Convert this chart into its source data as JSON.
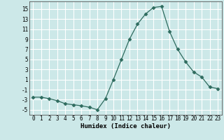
{
  "x": [
    0,
    1,
    2,
    3,
    4,
    5,
    6,
    7,
    8,
    9,
    10,
    11,
    12,
    13,
    14,
    15,
    16,
    17,
    18,
    19,
    20,
    21,
    22,
    23
  ],
  "y": [
    -2.5,
    -2.5,
    -2.8,
    -3.2,
    -3.8,
    -4.0,
    -4.2,
    -4.5,
    -5.0,
    -2.8,
    1.0,
    5.0,
    9.0,
    12.0,
    14.0,
    15.3,
    15.5,
    10.5,
    7.0,
    4.5,
    2.5,
    1.5,
    -0.5,
    -0.8
  ],
  "line_color": "#2e6b5e",
  "marker": "D",
  "marker_size": 2.5,
  "bg_color": "#cce8e8",
  "grid_color": "#ffffff",
  "xlabel": "Humidex (Indice chaleur)",
  "yticks": [
    -5,
    -3,
    -1,
    1,
    3,
    5,
    7,
    9,
    11,
    13,
    15
  ],
  "xticks": [
    0,
    1,
    2,
    3,
    4,
    5,
    6,
    7,
    8,
    9,
    10,
    11,
    12,
    13,
    14,
    15,
    16,
    17,
    18,
    19,
    20,
    21,
    22,
    23
  ],
  "ylim": [
    -6.0,
    16.5
  ],
  "xlim": [
    -0.5,
    23.5
  ]
}
